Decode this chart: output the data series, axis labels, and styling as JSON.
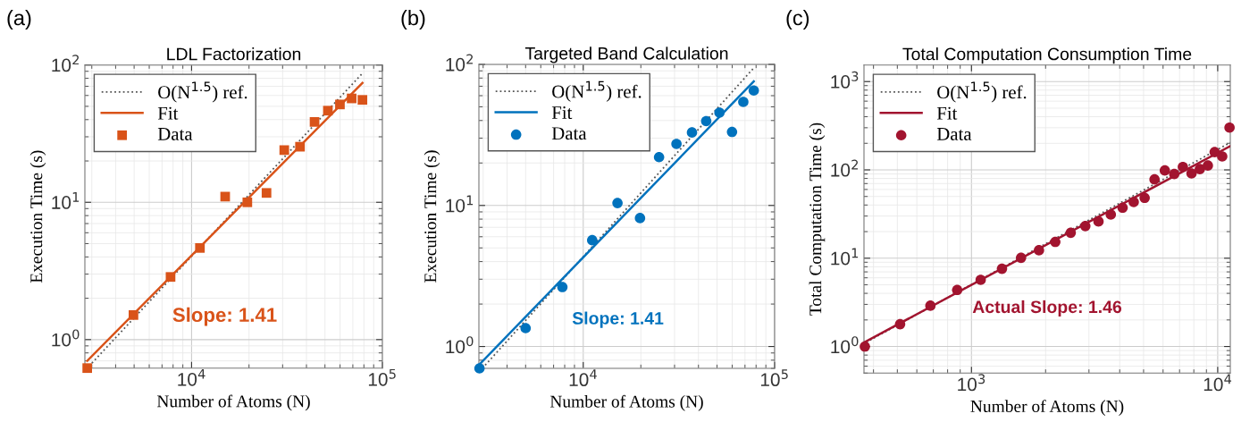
{
  "chart_data": [
    {
      "type": "scatter",
      "title": "LDL Factorization",
      "xlabel": "Number of Atoms (N)",
      "ylabel": "Execution Time (s)",
      "log": "xy",
      "grid": true,
      "legend": "top left",
      "xlim": [
        2760,
        100000
      ],
      "ylim": [
        0.62,
        100
      ],
      "xticks": [
        {
          "value": 10000,
          "label": "10$^{4}$"
        },
        {
          "value": 100000,
          "label": "10$^{5}$"
        }
      ],
      "yticks": [
        {
          "value": 1,
          "label": "10$^{0}$"
        },
        {
          "value": 10,
          "label": "10$^{1}$"
        },
        {
          "value": 100,
          "label": "10$^{2}$"
        }
      ],
      "annotations": [
        "(a)",
        "Slope: 1.41"
      ],
      "series": [
        {
          "name": "O(N$^{1.5}$) ref.",
          "type": "line",
          "line_style": "dotted",
          "color": "#555555",
          "x": [
            2900,
            78600
          ],
          "values": [
            0.64,
            87
          ]
        },
        {
          "name": "Fit",
          "type": "line",
          "line_style": "solid",
          "color": "#d95319",
          "x": [
            2840,
            78600
          ],
          "values": [
            0.7,
            74
          ]
        },
        {
          "name": "Data",
          "marker": "square",
          "color": "#d95319",
          "x": [
            2840,
            4960,
            7760,
            11060,
            15000,
            19600,
            24700,
            30600,
            37000,
            44100,
            51800,
            59900,
            69000,
            78600
          ],
          "values": [
            0.62,
            1.51,
            2.86,
            4.65,
            11.0,
            10.0,
            11.7,
            24.0,
            25.4,
            38.5,
            46.5,
            51.6,
            57.1,
            55.7
          ]
        }
      ]
    },
    {
      "type": "scatter",
      "title": "Targeted Band Calculation",
      "xlabel": "Number of Atoms (N)",
      "ylabel": "Execution Time (s)",
      "log": "xy",
      "grid": true,
      "legend": "top left",
      "xlim": [
        2850,
        100000
      ],
      "ylim": [
        0.7,
        100
      ],
      "xticks": [
        {
          "value": 10000,
          "label": "10$^{4}$"
        },
        {
          "value": 100000,
          "label": "10$^{5}$"
        }
      ],
      "yticks": [
        {
          "value": 1,
          "label": "10$^{0}$"
        },
        {
          "value": 10,
          "label": "10$^{1}$"
        },
        {
          "value": 100,
          "label": "10$^{2}$"
        }
      ],
      "annotations": [
        "(b)",
        "Slope: 1.41"
      ],
      "series": [
        {
          "name": "O(N$^{1.5}$) ref.",
          "type": "line",
          "line_style": "dotted",
          "color": "#555555",
          "x": [
            2970,
            77800
          ],
          "values": [
            0.7,
            94.3
          ]
        },
        {
          "name": "Fit",
          "type": "line",
          "line_style": "solid",
          "color": "#0072bd",
          "x": [
            2850,
            77800
          ],
          "values": [
            0.74,
            75.7
          ]
        },
        {
          "name": "Data",
          "marker": "circle",
          "color": "#0072bd",
          "x": [
            2870,
            5000,
            7780,
            11140,
            15100,
            19800,
            24900,
            30700,
            37000,
            43900,
            51500,
            59900,
            68600,
            77800
          ],
          "values": [
            0.7,
            1.35,
            2.64,
            5.67,
            10.4,
            8.14,
            22.0,
            27.3,
            32.9,
            39.6,
            45.5,
            33.2,
            54.2,
            65.3
          ]
        }
      ]
    },
    {
      "type": "scatter",
      "title": "Total Computation Consumption Time",
      "xlabel": "Number of Atoms (N)",
      "ylabel": "Total Computation Time (s)",
      "log": "xy",
      "grid": true,
      "legend": "top left",
      "xlim": [
        366,
        11250
      ],
      "ylim": [
        0.5,
        1540
      ],
      "xticks": [
        {
          "value": 1000,
          "label": "10$^{3}$"
        },
        {
          "value": 10000,
          "label": "10$^{4}$"
        }
      ],
      "yticks": [
        {
          "value": 1,
          "label": "10$^{0}$"
        },
        {
          "value": 10,
          "label": "10$^{1}$"
        },
        {
          "value": 100,
          "label": "10$^{2}$"
        },
        {
          "value": 1000,
          "label": "10$^{3}$"
        }
      ],
      "annotations": [
        "(c)",
        "Actual Slope: 1.46"
      ],
      "series": [
        {
          "name": "O(N$^{1.5}$) ref.",
          "type": "line",
          "line_style": "dotted",
          "color": "#555555",
          "x": [
            374,
            11250
          ],
          "values": [
            1.12,
            204
          ]
        },
        {
          "name": "Fit",
          "type": "line",
          "line_style": "solid",
          "color": "#a2142f",
          "x": [
            366,
            11250
          ],
          "values": [
            1.11,
            186
          ]
        },
        {
          "name": "Data",
          "marker": "circle",
          "color": "#a2142f",
          "x": [
            369,
            513,
            681,
            875,
            1090,
            1330,
            1590,
            1880,
            2190,
            2530,
            2900,
            3280,
            3680,
            4110,
            4560,
            5050,
            5540,
            6100,
            6660,
            7220,
            7830,
            8460,
            9120,
            9720,
            10430,
            11170
          ],
          "values": [
            1.0,
            1.79,
            2.9,
            4.37,
            5.69,
            7.59,
            10.1,
            12.3,
            15.3,
            19.4,
            23.1,
            26.1,
            31.2,
            37.3,
            43.3,
            48.2,
            78.0,
            98.5,
            89.7,
            108,
            91.2,
            102,
            112,
            159,
            142,
            301
          ]
        }
      ]
    }
  ]
}
